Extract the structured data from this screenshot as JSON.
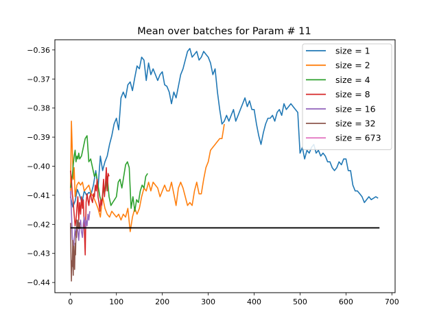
{
  "chart_data": {
    "type": "line",
    "title": "Mean over batches for Param # 11",
    "xlabel": "",
    "ylabel": "",
    "xlim": [
      -34,
      707
    ],
    "ylim": [
      -0.4435,
      -0.3565
    ],
    "xticks": [
      0,
      100,
      200,
      300,
      400,
      500,
      600,
      700
    ],
    "yticks": [
      -0.44,
      -0.43,
      -0.42,
      -0.41,
      -0.4,
      -0.39,
      -0.38,
      -0.37,
      -0.36
    ],
    "ytick_labels": [
      "−0.44",
      "−0.43",
      "−0.42",
      "−0.41",
      "−0.40",
      "−0.39",
      "−0.38",
      "−0.37",
      "−0.36"
    ],
    "grid": false,
    "legend_position": "top-right",
    "reference_line": {
      "x": [
        0,
        673
      ],
      "y": -0.4212,
      "color": "#000000"
    },
    "series": [
      {
        "name": "size = 1",
        "color": "#1f77b4",
        "x": [
          0,
          5,
          10,
          15,
          20,
          25,
          30,
          35,
          40,
          45,
          50,
          55,
          60,
          65,
          70,
          75,
          80,
          85,
          90,
          95,
          100,
          105,
          110,
          115,
          120,
          125,
          130,
          135,
          140,
          145,
          150,
          155,
          160,
          165,
          170,
          175,
          180,
          185,
          190,
          195,
          200,
          205,
          210,
          215,
          220,
          225,
          230,
          235,
          240,
          245,
          250,
          255,
          260,
          265,
          270,
          275,
          280,
          285,
          290,
          295,
          300,
          305,
          310,
          315,
          320,
          325,
          330,
          335,
          340,
          345,
          350,
          355,
          360,
          365,
          370,
          375,
          380,
          385,
          390,
          395,
          400,
          405,
          410,
          415,
          420,
          425,
          430,
          435,
          440,
          445,
          450,
          455,
          460,
          465,
          470,
          475,
          480,
          485,
          490,
          495,
          500,
          505,
          510,
          515,
          520,
          525,
          530,
          535,
          540,
          545,
          550,
          555,
          560,
          565,
          570,
          575,
          580,
          585,
          590,
          595,
          600,
          605,
          610,
          615,
          620,
          625,
          630,
          635,
          640,
          645,
          650,
          655,
          660,
          665,
          670
        ],
        "y": [
          -0.4105,
          -0.414,
          -0.412,
          -0.408,
          -0.41,
          -0.4125,
          -0.4085,
          -0.41,
          -0.409,
          -0.4095,
          -0.4065,
          -0.4015,
          -0.4075,
          -0.3965,
          -0.4015,
          -0.3985,
          -0.3965,
          -0.3925,
          -0.3895,
          -0.3855,
          -0.3835,
          -0.3875,
          -0.3765,
          -0.3745,
          -0.3765,
          -0.372,
          -0.371,
          -0.374,
          -0.3695,
          -0.3655,
          -0.3665,
          -0.3625,
          -0.3635,
          -0.3705,
          -0.3645,
          -0.3685,
          -0.3665,
          -0.3685,
          -0.3705,
          -0.3685,
          -0.3675,
          -0.372,
          -0.3725,
          -0.3745,
          -0.3785,
          -0.3745,
          -0.3765,
          -0.3725,
          -0.3685,
          -0.3665,
          -0.3635,
          -0.3605,
          -0.3595,
          -0.3625,
          -0.3615,
          -0.3605,
          -0.3635,
          -0.3625,
          -0.3605,
          -0.3615,
          -0.3625,
          -0.3645,
          -0.3685,
          -0.3665,
          -0.3745,
          -0.3805,
          -0.3855,
          -0.3845,
          -0.3825,
          -0.3845,
          -0.3825,
          -0.3805,
          -0.3845,
          -0.3825,
          -0.3805,
          -0.3785,
          -0.3765,
          -0.3795,
          -0.3775,
          -0.3805,
          -0.3805,
          -0.3855,
          -0.3895,
          -0.3925,
          -0.3885,
          -0.3855,
          -0.3835,
          -0.3835,
          -0.3825,
          -0.3845,
          -0.3815,
          -0.3805,
          -0.3825,
          -0.3785,
          -0.3805,
          -0.3795,
          -0.3785,
          -0.3795,
          -0.3805,
          -0.3815,
          -0.3955,
          -0.3935,
          -0.3975,
          -0.3945,
          -0.3955,
          -0.3935,
          -0.3925,
          -0.3955,
          -0.3945,
          -0.3965,
          -0.3955,
          -0.3965,
          -0.3985,
          -0.3985,
          -0.4005,
          -0.4015,
          -0.4005,
          -0.3985,
          -0.3995,
          -0.3975,
          -0.3975,
          -0.4015,
          -0.4015,
          -0.4065,
          -0.4085,
          -0.4085,
          -0.4095,
          -0.4105,
          -0.4125,
          -0.4115,
          -0.4105,
          -0.4115,
          -0.411,
          -0.4105,
          -0.411
        ]
      },
      {
        "name": "size = 2",
        "color": "#ff7f0e",
        "x": [
          0,
          2,
          4,
          6,
          8,
          10,
          14,
          18,
          22,
          26,
          30,
          35,
          40,
          45,
          50,
          55,
          60,
          65,
          70,
          75,
          80,
          85,
          90,
          95,
          100,
          105,
          110,
          115,
          120,
          125,
          130,
          135,
          140,
          145,
          150,
          155,
          160,
          165,
          170,
          175,
          180,
          185,
          190,
          195,
          200,
          205,
          210,
          215,
          220,
          225,
          230,
          235,
          240,
          245,
          250,
          255,
          260,
          265,
          270,
          275,
          280,
          285,
          290,
          295,
          300,
          305,
          310,
          315,
          320,
          325,
          330,
          335
        ],
        "y": [
          -0.4085,
          -0.3845,
          -0.3945,
          -0.4045,
          -0.4005,
          -0.4105,
          -0.4065,
          -0.4055,
          -0.4065,
          -0.4055,
          -0.4085,
          -0.4075,
          -0.4065,
          -0.4095,
          -0.4105,
          -0.4125,
          -0.4145,
          -0.4175,
          -0.4105,
          -0.4145,
          -0.4165,
          -0.4175,
          -0.4155,
          -0.4165,
          -0.4175,
          -0.4165,
          -0.4185,
          -0.4165,
          -0.4175,
          -0.4145,
          -0.4225,
          -0.4175,
          -0.4145,
          -0.4165,
          -0.4145,
          -0.4105,
          -0.4075,
          -0.4085,
          -0.4055,
          -0.4085,
          -0.4055,
          -0.4065,
          -0.4075,
          -0.4105,
          -0.4085,
          -0.4065,
          -0.4085,
          -0.4085,
          -0.4055,
          -0.4095,
          -0.4135,
          -0.4075,
          -0.4055,
          -0.4075,
          -0.4105,
          -0.4135,
          -0.4125,
          -0.4135,
          -0.4085,
          -0.4055,
          -0.4095,
          -0.4095,
          -0.4045,
          -0.4005,
          -0.3985,
          -0.3945,
          -0.3935,
          -0.3925,
          -0.3915,
          -0.3905,
          -0.3905,
          -0.3855
        ]
      },
      {
        "name": "size = 4",
        "color": "#2ca02c",
        "x": [
          0,
          2,
          4,
          6,
          8,
          10,
          12,
          14,
          16,
          18,
          20,
          24,
          28,
          32,
          36,
          40,
          44,
          48,
          52,
          56,
          60,
          64,
          68,
          72,
          76,
          80,
          84,
          88,
          92,
          96,
          100,
          104,
          108,
          112,
          116,
          120,
          124,
          128,
          132,
          136,
          140,
          144,
          148,
          152,
          156,
          160,
          164,
          168
        ],
        "y": [
          -0.4075,
          -0.4055,
          -0.4035,
          -0.3995,
          -0.3965,
          -0.3945,
          -0.3985,
          -0.3965,
          -0.3975,
          -0.3955,
          -0.3975,
          -0.3965,
          -0.3935,
          -0.3905,
          -0.3895,
          -0.3985,
          -0.3975,
          -0.4005,
          -0.4035,
          -0.4025,
          -0.4065,
          -0.4105,
          -0.4125,
          -0.4075,
          -0.4085,
          -0.4035,
          -0.4105,
          -0.4135,
          -0.4125,
          -0.4115,
          -0.4105,
          -0.4055,
          -0.4045,
          -0.4075,
          -0.4035,
          -0.3995,
          -0.3985,
          -0.4005,
          -0.4145,
          -0.4105,
          -0.4155,
          -0.4115,
          -0.4125,
          -0.4085,
          -0.4065,
          -0.4075,
          -0.4035,
          -0.4025
        ]
      },
      {
        "name": "size = 8",
        "color": "#d62728",
        "x": [
          0,
          2,
          4,
          6,
          8,
          10,
          12,
          14,
          16,
          18,
          20,
          22,
          24,
          26,
          28,
          30,
          32,
          34,
          36,
          38,
          40,
          42,
          44,
          46,
          48,
          50,
          52,
          54,
          56,
          58,
          60,
          62,
          64,
          66,
          68,
          70,
          72,
          74,
          76,
          78,
          80,
          82,
          84
        ],
        "y": [
          -0.4015,
          -0.4045,
          -0.4095,
          -0.4125,
          -0.4165,
          -0.4205,
          -0.4185,
          -0.4145,
          -0.4105,
          -0.4185,
          -0.4125,
          -0.4165,
          -0.4105,
          -0.4145,
          -0.4115,
          -0.4205,
          -0.4305,
          -0.4125,
          -0.4095,
          -0.4115,
          -0.4135,
          -0.4105,
          -0.4095,
          -0.4115,
          -0.4125,
          -0.4095,
          -0.4105,
          -0.4065,
          -0.4085,
          -0.4045,
          -0.4105,
          -0.4125,
          -0.4155,
          -0.4115,
          -0.4135,
          -0.4095,
          -0.4045,
          -0.4105,
          -0.4065,
          -0.4005,
          -0.4085,
          -0.4025,
          -0.4035
        ]
      },
      {
        "name": "size = 16",
        "color": "#9467bd",
        "x": [
          0,
          2,
          4,
          6,
          8,
          10,
          12,
          14,
          16,
          18,
          20,
          22,
          24,
          26,
          28,
          30,
          32,
          34,
          36,
          38,
          40,
          42
        ],
        "y": [
          -0.4085,
          -0.4155,
          -0.4245,
          -0.4285,
          -0.4255,
          -0.4215,
          -0.4245,
          -0.4205,
          -0.4225,
          -0.4255,
          -0.4205,
          -0.4185,
          -0.4225,
          -0.4245,
          -0.4195,
          -0.4175,
          -0.4215,
          -0.4185,
          -0.4205,
          -0.4165,
          -0.4185,
          -0.4155
        ]
      },
      {
        "name": "size = 32",
        "color": "#8c564b",
        "x": [
          0,
          1,
          2,
          3,
          4,
          5,
          6,
          7,
          8,
          9,
          10,
          11,
          12,
          13,
          14,
          15,
          16,
          17,
          18,
          19,
          20,
          21
        ],
        "y": [
          -0.4195,
          -0.4295,
          -0.4395,
          -0.4325,
          -0.4345,
          -0.4255,
          -0.4375,
          -0.4275,
          -0.4325,
          -0.4355,
          -0.4265,
          -0.4305,
          -0.4225,
          -0.4245,
          -0.4185,
          -0.4215,
          -0.4205,
          -0.4185,
          -0.4215,
          -0.4195,
          -0.4205,
          -0.4215
        ]
      },
      {
        "name": "size = 673",
        "color": "#e377c2",
        "x": [
          0
        ],
        "y": [
          -0.4212
        ]
      }
    ]
  }
}
